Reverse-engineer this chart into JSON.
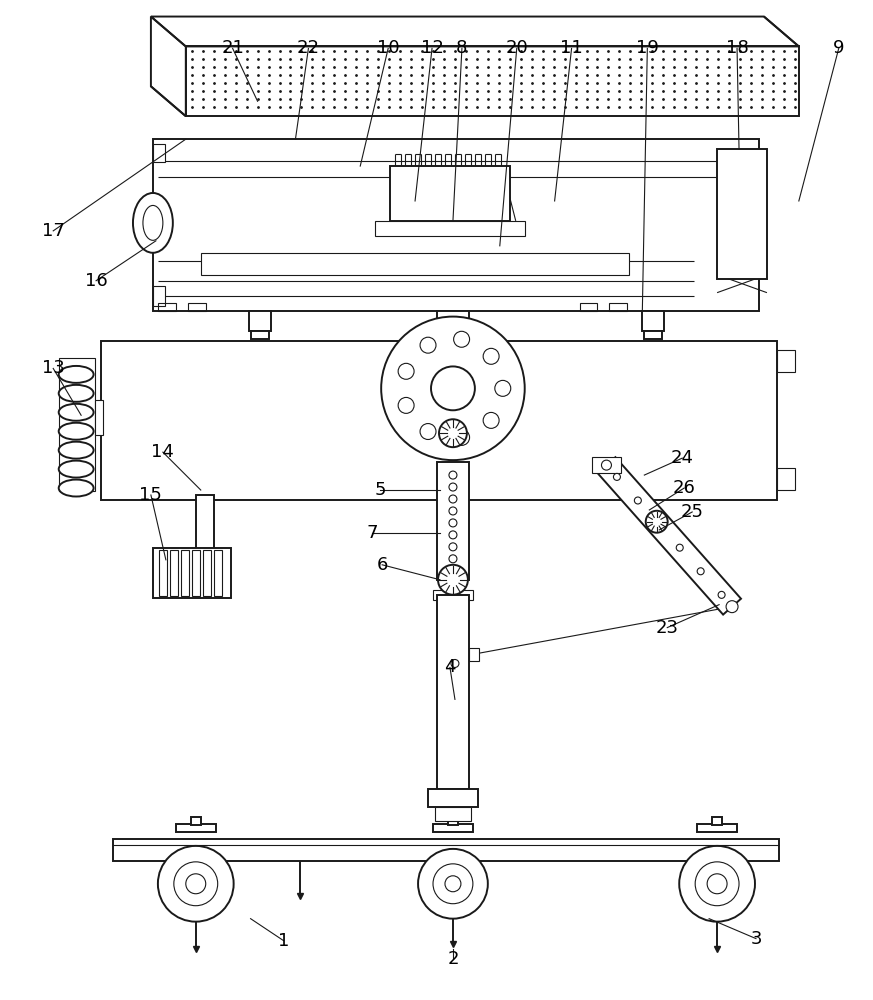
{
  "bg_color": "#ffffff",
  "lc": "#1a1a1a",
  "lw": 1.4,
  "tlw": 0.8,
  "fig_w": 8.73,
  "fig_h": 10.0
}
